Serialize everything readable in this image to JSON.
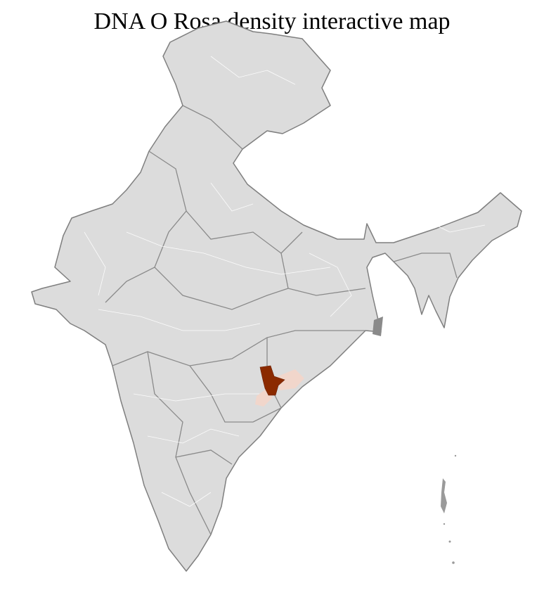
{
  "title": "DNA O Rosa density interactive map",
  "map": {
    "base_fill": "#dcdcdc",
    "border_color": "#7f7f7f",
    "district_line_color": "#ffffff",
    "highlight_high_color": "#8b2a00",
    "highlight_low_color": "#f1d6cb"
  }
}
